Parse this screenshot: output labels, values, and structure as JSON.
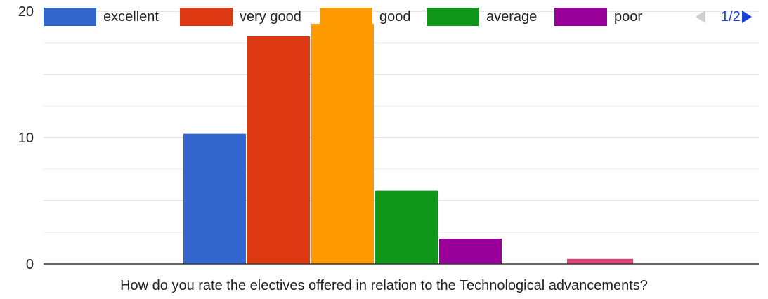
{
  "chart_data": {
    "type": "bar",
    "categories": [
      ""
    ],
    "series": [
      {
        "name": "excellent",
        "values": [
          10.3
        ]
      },
      {
        "name": "very good",
        "values": [
          18
        ]
      },
      {
        "name": "good",
        "values": [
          19
        ]
      },
      {
        "name": "average",
        "values": [
          5.8
        ]
      },
      {
        "name": "poor",
        "values": [
          2
        ]
      },
      {
        "name": "",
        "values": [
          0.4
        ]
      }
    ],
    "colors": [
      "#3366cc",
      "#dc3912",
      "#ff9900",
      "#109618",
      "#990099",
      "#dd4477"
    ],
    "xlabel": "How do you rate the electives offered in relation to the Technological advancements?",
    "ylabel": "",
    "ylim": [
      0,
      20
    ],
    "yticks": [
      "0",
      "10",
      "20"
    ],
    "grid": true,
    "legend_position": "top"
  },
  "legend": {
    "items": [
      {
        "label": "excellent",
        "color": "#3366cc"
      },
      {
        "label": "very good",
        "color": "#dc3912"
      },
      {
        "label": "good",
        "color": "#ff9900"
      },
      {
        "label": "average",
        "color": "#109618"
      },
      {
        "label": "poor",
        "color": "#990099"
      }
    ],
    "page_indicator": "1/2",
    "prev_icon": "triangle-left-icon",
    "next_icon": "triangle-right-icon"
  }
}
